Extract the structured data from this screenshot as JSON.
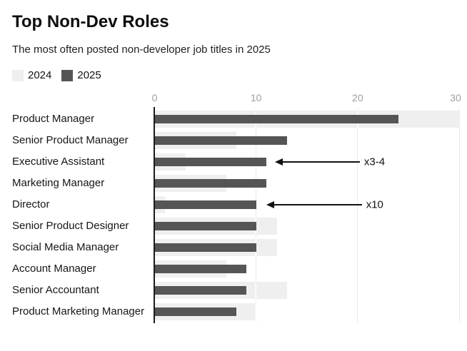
{
  "header": {
    "title": "Top Non-Dev Roles",
    "subtitle": "The most often posted non-developer job titles in 2025"
  },
  "legend": {
    "items": [
      {
        "label": "2024",
        "color": "#efefef"
      },
      {
        "label": "2025",
        "color": "#555555"
      }
    ]
  },
  "chart_data": {
    "type": "bar",
    "orientation": "horizontal",
    "title": "Top Non-Dev Roles",
    "subtitle": "The most often posted non-developer job titles in 2025",
    "categories": [
      "Product Manager",
      "Senior Product Manager",
      "Executive Assistant",
      "Marketing Manager",
      "Director",
      "Senior Product Designer",
      "Social Media Manager",
      "Account Manager",
      "Senior Accountant",
      "Product Marketing Manager"
    ],
    "series": [
      {
        "name": "2024",
        "color": "#efefef",
        "values": [
          30,
          8,
          3,
          7,
          1,
          12,
          12,
          7,
          13,
          10
        ]
      },
      {
        "name": "2025",
        "color": "#555555",
        "values": [
          24,
          13,
          11,
          11,
          10,
          10,
          10,
          9,
          9,
          8
        ]
      }
    ],
    "xlim": [
      0,
      30
    ],
    "ticks": [
      0,
      10,
      20,
      30
    ],
    "grid": "vertical",
    "legend_position": "top-left",
    "annotations": [
      {
        "text": "x3-4",
        "category": "Executive Assistant",
        "row_index": 2,
        "tip_x": 11.8,
        "text_x": 20.6
      },
      {
        "text": "x10",
        "category": "Director",
        "row_index": 4,
        "tip_x": 11.0,
        "text_x": 20.8
      }
    ]
  },
  "colors": {
    "bar_2024": "#efefef",
    "bar_2025": "#555555",
    "gridline": "#ebebeb",
    "axis_line": "#1a1a1a",
    "tick_label": "#9e9e9e",
    "text": "#111111",
    "background": "#ffffff"
  }
}
